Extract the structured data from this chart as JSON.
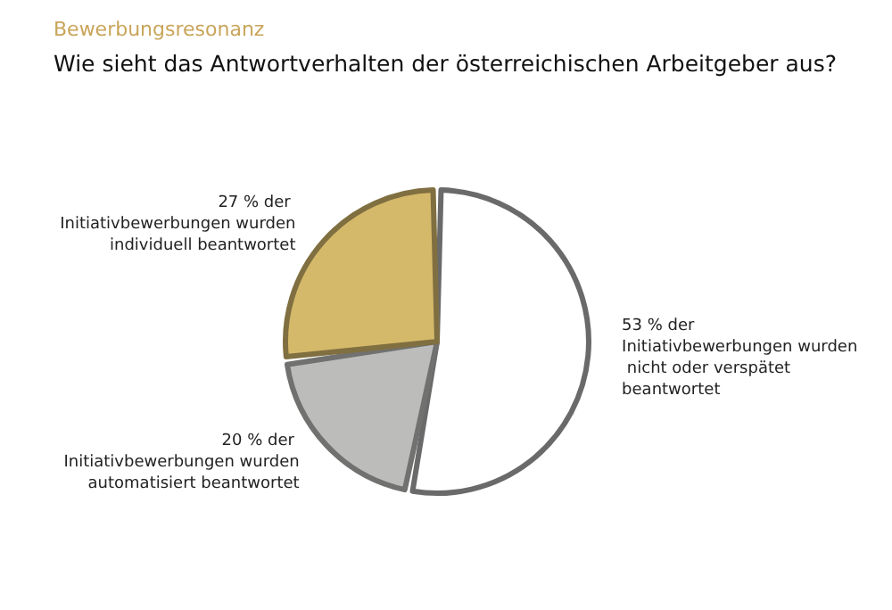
{
  "chart_data": {
    "type": "pie",
    "subtitle": "Bewerbungsresonanz",
    "title": "Wie sieht das Antwortverhalten der österreichischen Arbeitgeber aus?",
    "categories": [
      "53 % der Initiativbewerbungen wurden nicht oder verspätet beantwortet",
      "20 % der Initiativbewerbungen wurden automatisiert beantwortet",
      "27 % der Initiativbewerbungen wurden individuell beantwortet"
    ],
    "values": [
      53,
      20,
      27
    ],
    "colors": [
      "#ffffff",
      "#bcbcba",
      "#d5b96b"
    ],
    "legend": false
  }
}
